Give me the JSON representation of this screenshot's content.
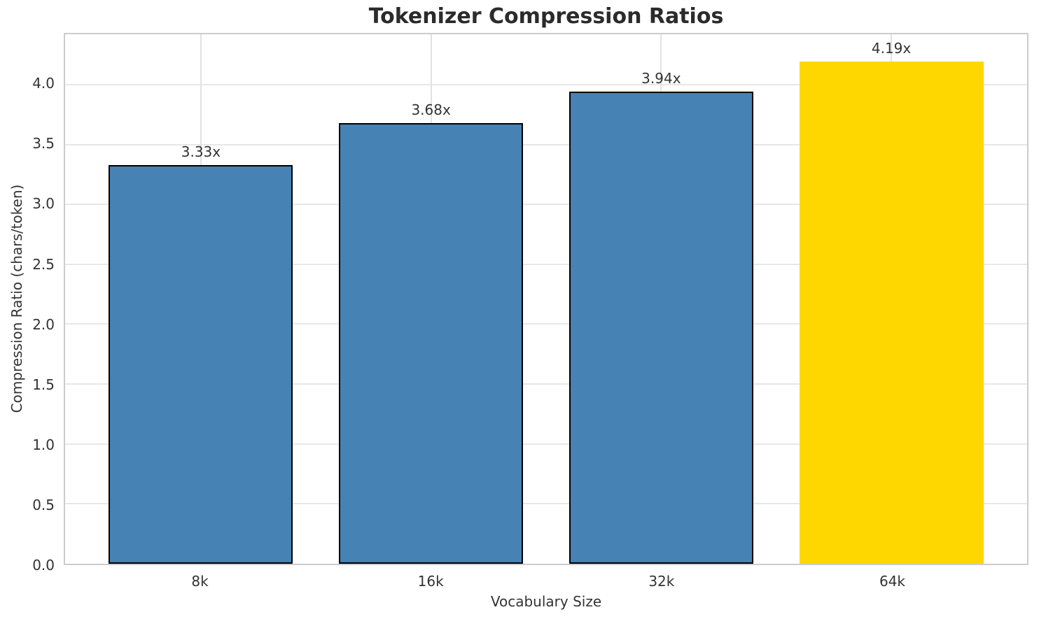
{
  "chart_data": {
    "type": "bar",
    "title": "Tokenizer Compression Ratios",
    "xlabel": "Vocabulary Size",
    "ylabel": "Compression Ratio (chars/token)",
    "categories": [
      "8k",
      "16k",
      "32k",
      "64k"
    ],
    "values": [
      3.33,
      3.68,
      3.94,
      4.19
    ],
    "bar_labels": [
      "3.33x",
      "3.68x",
      "3.94x",
      "4.19x"
    ],
    "bar_colors": [
      "#4682b4",
      "#4682b4",
      "#4682b4",
      "#ffd700"
    ],
    "bar_edge_colors": [
      "#000000",
      "#000000",
      "#000000",
      "none"
    ],
    "yticks": [
      0,
      0.5,
      1,
      1.5,
      2,
      2.5,
      3,
      3.5,
      4
    ],
    "ytick_labels": [
      "0.0",
      "0.5",
      "1.0",
      "1.5",
      "2.0",
      "2.5",
      "3.0",
      "3.5",
      "4.0"
    ],
    "ylim": [
      0,
      4.42
    ],
    "grid": true,
    "grid_on_x": true,
    "grid_on_y": true,
    "legend": "none",
    "bar_width_fraction": 0.8,
    "colors": {
      "grid": "#e2e2e2",
      "spine": "#cccccc",
      "text": "#333333",
      "background": "#ffffff"
    }
  }
}
